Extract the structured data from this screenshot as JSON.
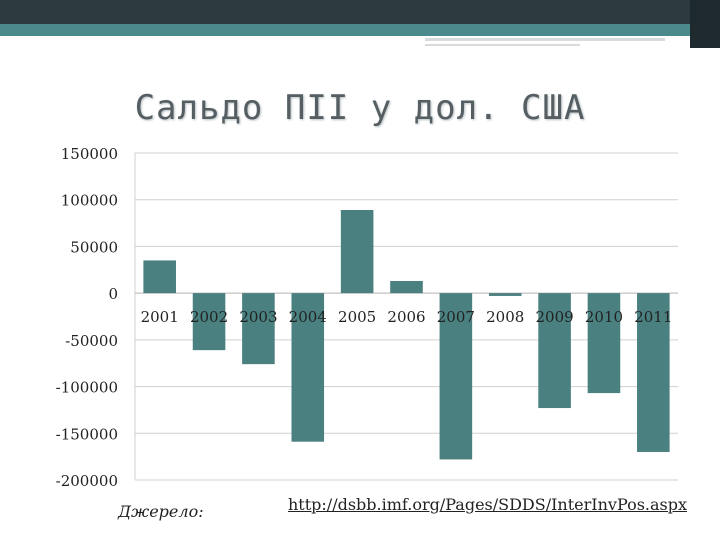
{
  "chart_data": {
    "type": "bar",
    "title": "Сальдо ПІІ у дол. США",
    "xlabel": "",
    "ylabel": "",
    "categories": [
      "2001",
      "2002",
      "2003",
      "2004",
      "2005",
      "2006",
      "2007",
      "2008",
      "2009",
      "2010",
      "2011"
    ],
    "values": [
      35000,
      -61000,
      -76000,
      -159000,
      89000,
      13000,
      -178000,
      -3000,
      -123000,
      -107000,
      -170000
    ],
    "ylim": [
      -200000,
      150000
    ],
    "yticks": [
      150000,
      100000,
      50000,
      0,
      -50000,
      -100000,
      -150000,
      -200000
    ],
    "ytick_labels": [
      "150000",
      "100000",
      "50000",
      "0",
      "-50000",
      "-100000",
      "-150000",
      "-200000"
    ],
    "grid": true,
    "legend": "none",
    "bar_color": "#4a8080"
  },
  "source": {
    "label": "Джерело:",
    "link": "http://dsbb.imf.org/Pages/SDDS/InterInvPos.aspx"
  }
}
